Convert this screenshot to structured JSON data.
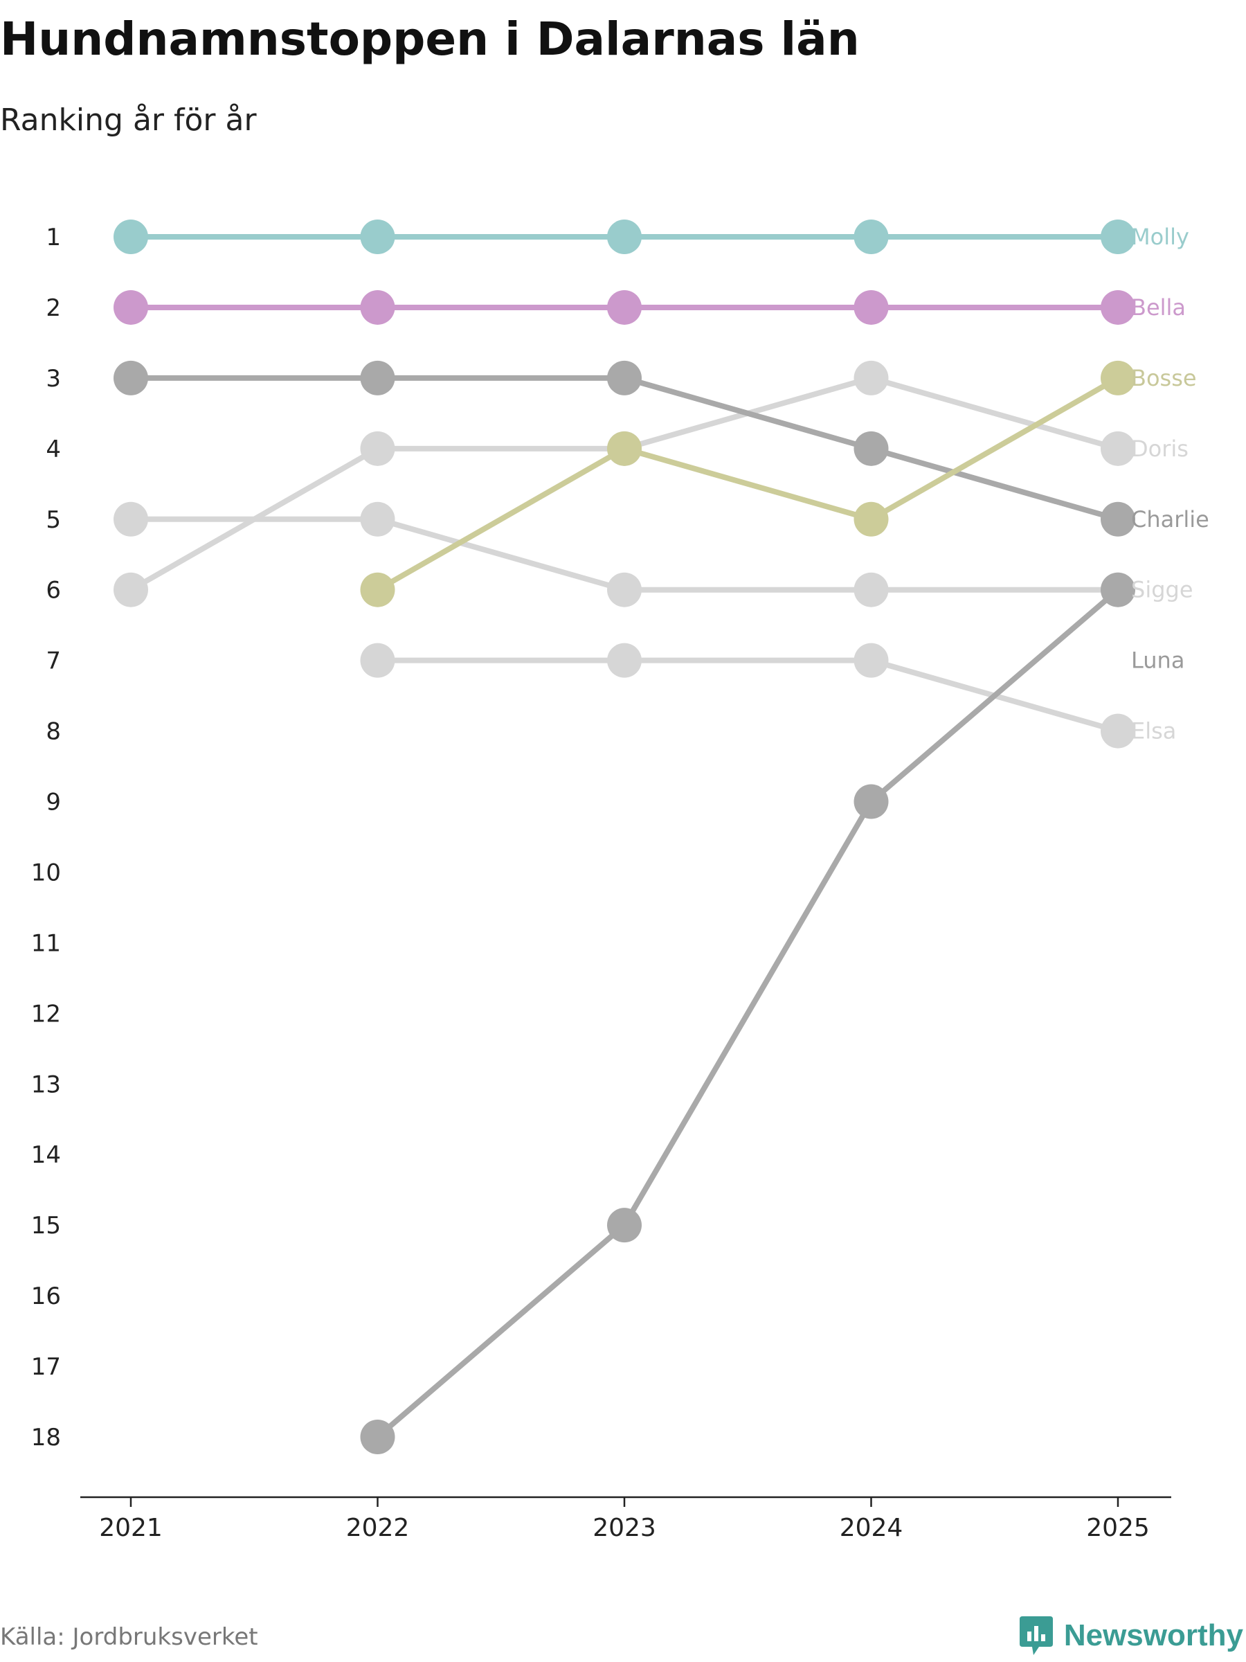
{
  "header": {
    "title": "Hundnamnstoppen i Dalarnas län",
    "subtitle": "Ranking år för år"
  },
  "footer": {
    "source": "Källa: Jordbruksverket",
    "brand": "Newsworthy",
    "brand_icon": "bar-chart-speech-bubble-icon"
  },
  "colors": {
    "axis": "#222222",
    "brand": "#3b9c94"
  },
  "chart_data": {
    "type": "line",
    "title": "Hundnamnstoppen i Dalarnas län",
    "subtitle": "Ranking år för år",
    "xlabel": "",
    "ylabel": "",
    "x": [
      2021,
      2022,
      2023,
      2024,
      2025
    ],
    "x_tick_labels": [
      "2021",
      "2022",
      "2023",
      "2024",
      "2025"
    ],
    "y_tick_labels": [
      "1",
      "2",
      "3",
      "4",
      "5",
      "6",
      "7",
      "8",
      "9",
      "10",
      "11",
      "12",
      "13",
      "14",
      "15",
      "16",
      "17",
      "18"
    ],
    "ylim": [
      1,
      18
    ],
    "y_inverted": true,
    "grid": false,
    "legend": "direct labels at right end",
    "series": [
      {
        "name": "Elsa",
        "color": "#d6d6d6",
        "label_color": "#d6d6d6",
        "values": [
          null,
          7,
          7,
          7,
          8
        ]
      },
      {
        "name": "Sigge",
        "color": "#d6d6d6",
        "label_color": "#d6d6d6",
        "values": [
          5,
          5,
          6,
          6,
          6
        ]
      },
      {
        "name": "Doris",
        "color": "#d6d6d6",
        "label_color": "#d6d6d6",
        "values": [
          6,
          4,
          4,
          3,
          4
        ]
      },
      {
        "name": "Luna",
        "color": "#a9a9a9",
        "label_color": "#9a9a9a",
        "values": [
          null,
          18,
          15,
          9,
          6
        ]
      },
      {
        "name": "Charlie",
        "color": "#a9a9a9",
        "label_color": "#9a9a9a",
        "values": [
          3,
          3,
          3,
          4,
          5
        ]
      },
      {
        "name": "Bosse",
        "color": "#cccc99",
        "label_color": "#c8c89a",
        "values": [
          null,
          6,
          4,
          5,
          3
        ]
      },
      {
        "name": "Bella",
        "color": "#cc99cc",
        "label_color": "#cc99cc",
        "values": [
          2,
          2,
          2,
          2,
          2
        ]
      },
      {
        "name": "Molly",
        "color": "#99cccc",
        "label_color": "#99cccc",
        "values": [
          1,
          1,
          1,
          1,
          1
        ]
      }
    ]
  }
}
